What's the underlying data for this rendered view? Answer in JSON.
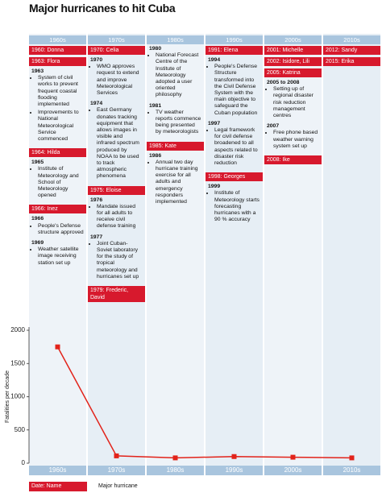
{
  "title": "Major hurricanes to hit Cuba",
  "columns": [
    {
      "decade": "1960s",
      "items": [
        {
          "type": "hurricane",
          "label": "1960: Donna"
        },
        {
          "type": "hurricane",
          "label": "1963: Flora"
        },
        {
          "type": "event",
          "year": "1963",
          "bullets": [
            "System of civil works to prevent frequent coastal flooding implemented",
            "Improvements to National Meteorological Service commenced"
          ]
        },
        {
          "type": "hurricane",
          "label": "1964: Hilda"
        },
        {
          "type": "event",
          "year": "1965",
          "bullets": [
            "Institute of Meteorology and School of Meteorology opened"
          ]
        },
        {
          "type": "hurricane",
          "label": "1966: Inez"
        },
        {
          "type": "event",
          "year": "1966",
          "bullets": [
            "People's Defense structure approved"
          ]
        },
        {
          "type": "event",
          "year": "1969",
          "bullets": [
            "Weather satellite image receiving station set up"
          ]
        }
      ]
    },
    {
      "decade": "1970s",
      "items": [
        {
          "type": "hurricane",
          "label": "1970: Celia"
        },
        {
          "type": "event",
          "year": "1970",
          "bullets": [
            "WMO approves request to extend and improve Meteorological Services"
          ]
        },
        {
          "type": "event",
          "year": "1974",
          "bullets": [
            "East Germany donates tracking equipment that allows images in visible and infrared spectrum produced by NOAA to be used to track atmospheric phenomena"
          ]
        },
        {
          "type": "hurricane",
          "label": "1975: Eloise"
        },
        {
          "type": "event",
          "year": "1976",
          "bullets": [
            "Mandate issued for all adults to receive civil defense training"
          ]
        },
        {
          "type": "event",
          "year": "1977",
          "bullets": [
            "Joint Cuban-Soviet laboratory for the study of tropical meteorology and hurricanes set up"
          ]
        },
        {
          "type": "hurricane",
          "label": "1979: Frederic, David"
        }
      ]
    },
    {
      "decade": "1980s",
      "items": [
        {
          "type": "event",
          "year": "1980",
          "bullets": [
            "National Forecast Centre of the Institute of Meteorology adopted a user oriented philosophy"
          ]
        },
        {
          "type": "event",
          "year": "1981",
          "bullets": [
            "TV weather reports commence being presented by meteorologists"
          ]
        },
        {
          "type": "hurricane",
          "label": "1985: Kate"
        },
        {
          "type": "event",
          "year": "1986",
          "bullets": [
            "Annual two day hurricane training exercise for all adults and emergency responders implemented"
          ]
        }
      ]
    },
    {
      "decade": "1990s",
      "items": [
        {
          "type": "hurricane",
          "label": "1991: Elena"
        },
        {
          "type": "event",
          "year": "1994",
          "bullets": [
            "People's Defense Structure transformed into the Civil Defense System with the main objective to safeguard the Cuban population"
          ]
        },
        {
          "type": "event",
          "year": "1997",
          "bullets": [
            "Legal framework for civil defense broadened to all aspects related to disaster risk reduction"
          ]
        },
        {
          "type": "hurricane",
          "label": "1998: Georges"
        },
        {
          "type": "event",
          "year": "1999",
          "bullets": [
            "Institute of Meteorology starts forecasting hurricanes with a 90 % accuracy"
          ]
        }
      ]
    },
    {
      "decade": "2000s",
      "items": [
        {
          "type": "hurricane",
          "label": "2001: Michelle"
        },
        {
          "type": "hurricane",
          "label": "2002: Isidore, Lili"
        },
        {
          "type": "hurricane",
          "label": "2005: Katrina"
        },
        {
          "type": "event",
          "year": "2005 to 2008",
          "bullets": [
            "Setting up of regional disaster risk reduction management centres"
          ]
        },
        {
          "type": "event",
          "year": "2007",
          "bullets": [
            "Free phone based weather warning system set up"
          ]
        },
        {
          "type": "hurricane",
          "label": "2008: Ike"
        }
      ]
    },
    {
      "decade": "2010s",
      "items": [
        {
          "type": "hurricane",
          "label": "2012: Sandy"
        },
        {
          "type": "hurricane",
          "label": "2015: Erika"
        }
      ]
    }
  ],
  "chart_data": {
    "type": "line",
    "y_label": "Fatalities per decade",
    "categories": [
      "1960s",
      "1970s",
      "1980s",
      "1990s",
      "2000s",
      "2010s"
    ],
    "series": [
      {
        "name": "Fatalities",
        "color": "#e2231a",
        "values": [
          1750,
          110,
          80,
          100,
          90,
          80
        ]
      }
    ],
    "ylim": [
      0,
      2000
    ],
    "yticks": [
      0,
      500,
      1000,
      1500,
      2000
    ]
  },
  "legend": {
    "key": "Date: Name",
    "label": "Major hurricane"
  }
}
